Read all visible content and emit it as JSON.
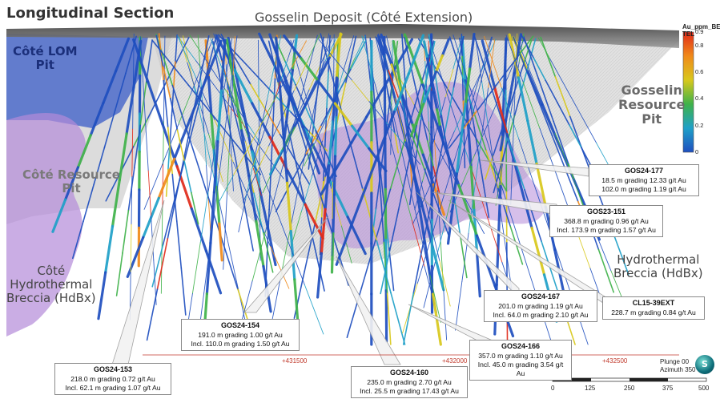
{
  "header": {
    "title": "Longitudinal Section",
    "subtitle": "Gosselin Deposit (Côté Extension)"
  },
  "zones": {
    "cote_lom_pit": "Côté LOM\nPit",
    "cote_resource_pit": "Côté Resource\nPit",
    "cote_hdbx": "Côté\nHydrothermal\nBreccia (HdBx)",
    "gosselin_resource_pit": "Gosselin\nResource\nPit",
    "hdbx": "Hydrothermal\nBreccia (HdBx)"
  },
  "callouts": [
    {
      "id": "GOS24-177",
      "hole": "GOS24-177",
      "lines": [
        "18.5 m grading 12.33 g/t Au",
        "102.0 m grading 1.19 g/t Au"
      ]
    },
    {
      "id": "GOS23-151",
      "hole": "GOS23-151",
      "lines": [
        "368.8 m grading 0.96 g/t Au",
        "Incl. 173.9 m grading 1.57 g/t Au"
      ]
    },
    {
      "id": "GOS24-167",
      "hole": "GOS24-167",
      "lines": [
        "201.0 m grading 1.19 g/t Au",
        "Incl. 64.0 m grading 2.10 g/t Au"
      ]
    },
    {
      "id": "CL15-39EXT",
      "hole": "CL15-39EXT",
      "lines": [
        "228.7 m grading 0.84 g/t Au"
      ]
    },
    {
      "id": "GOS24-154",
      "hole": "GOS24-154",
      "lines": [
        "191.0 m grading 1.00 g/t Au",
        "Incl. 110.0 m grading 1.50 g/t Au"
      ]
    },
    {
      "id": "GOS24-166",
      "hole": "GOS24-166",
      "lines": [
        "357.0 m grading 1.10 g/t Au",
        "Incl. 45.0 m grading 3.54 g/t Au"
      ]
    },
    {
      "id": "GOS24-153",
      "hole": "GOS24-153",
      "lines": [
        "218.0 m grading 0.72 g/t Au",
        "Incl. 62.1 m grading 1.07 g/t Au"
      ]
    },
    {
      "id": "GOS24-160",
      "hole": "GOS24-160",
      "lines": [
        "235.0 m grading 2.70 g/t Au",
        "Incl. 25.5 m grading 17.43 g/t Au"
      ]
    }
  ],
  "legend": {
    "title": "Au_ppm_BES\nTEL",
    "ticks": [
      "0.9",
      "0.8",
      "0.6",
      "0.4",
      "0.2",
      "0"
    ],
    "tick_values": [
      0.9,
      0.8,
      0.6,
      0.4,
      0.2,
      0
    ],
    "colors": [
      "#1f4fbf",
      "#1fa0c8",
      "#3fb24a",
      "#d8c81c",
      "#f08a1a",
      "#e02a1a"
    ]
  },
  "eastings": [
    "+431500",
    "+432000",
    "+432500"
  ],
  "scale": {
    "labels": [
      "0",
      "125",
      "250",
      "375",
      "500"
    ]
  },
  "orientation": {
    "plunge": "Plunge 00",
    "azimuth": "Azimuth 350",
    "compass_letter": "S"
  },
  "colors": {
    "hdbx_fill": "#b48ad8",
    "pit_blue": "#3a5cc8",
    "pit_grey": "#b8b8b8",
    "hole_blue": "#1f4fbf"
  }
}
